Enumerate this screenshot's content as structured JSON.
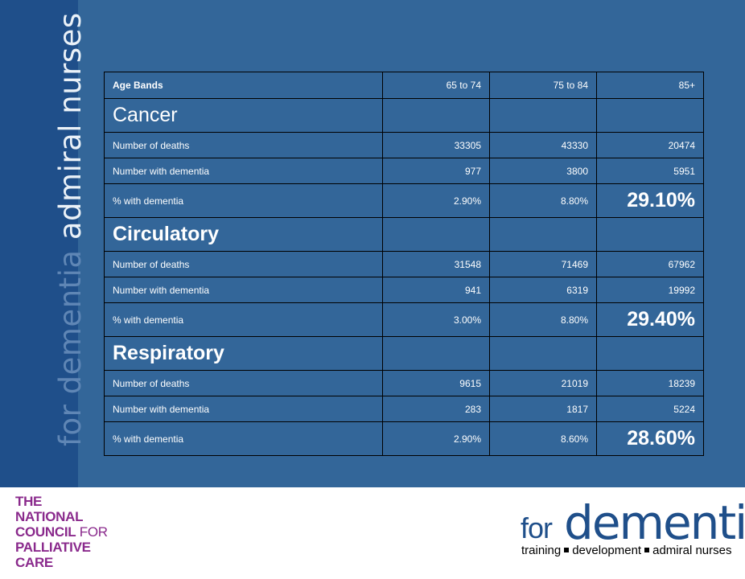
{
  "sidebar": {
    "vertical_dim": "for dementia ",
    "vertical_bright": "admiral nurses"
  },
  "table": {
    "header": {
      "label": "Age Bands",
      "cols": [
        "65 to 74",
        "75 to 84",
        "85+"
      ]
    },
    "sections": [
      {
        "title": "Cancer",
        "rows": [
          {
            "label": "Number of deaths",
            "values": [
              "33305",
              "43330",
              "20474"
            ]
          },
          {
            "label": "Number with dementia",
            "values": [
              "977",
              "3800",
              "5951"
            ]
          },
          {
            "label": "% with dementia",
            "values": [
              "2.90%",
              "8.80%",
              "29.10%"
            ]
          }
        ]
      },
      {
        "title": "Circulatory",
        "rows": [
          {
            "label": "Number of deaths",
            "values": [
              "31548",
              "71469",
              "67962"
            ]
          },
          {
            "label": "Number with dementia",
            "values": [
              "941",
              "6319",
              "19992"
            ]
          },
          {
            "label": "% with dementia",
            "values": [
              "3.00%",
              "8.80%",
              "29.40%"
            ]
          }
        ]
      },
      {
        "title": "Respiratory",
        "rows": [
          {
            "label": "Number of deaths",
            "values": [
              "9615",
              "21019",
              "18239"
            ]
          },
          {
            "label": "Number with dementia",
            "values": [
              "283",
              "1817",
              "5224"
            ]
          },
          {
            "label": "% with dementia",
            "values": [
              "2.90%",
              "8.60%",
              "28.60%"
            ]
          }
        ]
      }
    ]
  },
  "footer": {
    "ncpc": {
      "line1": "THE",
      "line2": "NATIONAL",
      "line3a": "COUNCIL",
      "line3b": " FOR",
      "line4": "PALLIATIVE",
      "line5": "CARE"
    },
    "fd": {
      "for": "for",
      "dementia": "dementia",
      "tag1": "training",
      "tag2": "development",
      "tag3": "admiral nurses"
    }
  },
  "colors": {
    "slide_bg": "#336699",
    "sidebar_bg": "#1f4f8a",
    "ncpc_purple": "#8a2a8c"
  }
}
